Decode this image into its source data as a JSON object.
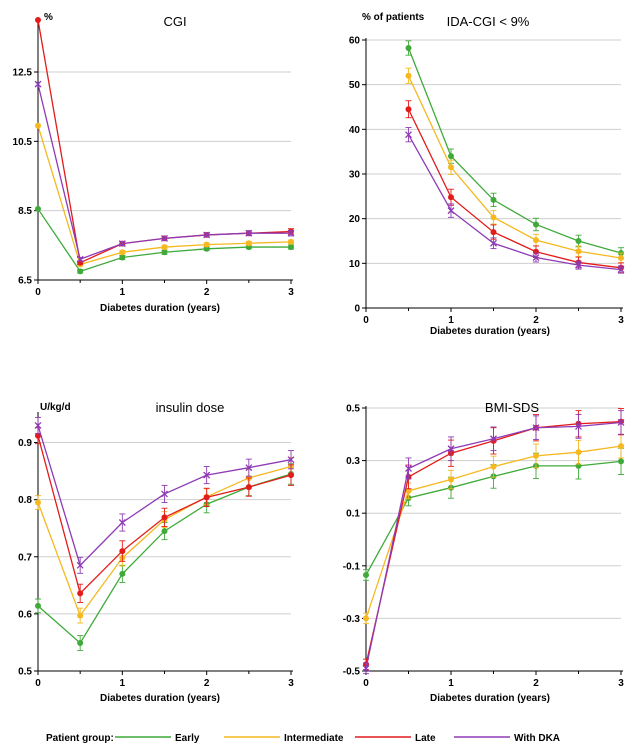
{
  "chart_data": [
    {
      "type": "line",
      "title": "CGI",
      "ylabel": "%",
      "xlabel": "Diabetes duration (years)",
      "xlim": [
        0,
        3
      ],
      "ylim": [
        6.5,
        14
      ],
      "x_ticks": [
        "0",
        "1",
        "2",
        "3"
      ],
      "y_ticks": [
        {
          "value": 6.5,
          "label": "6.5"
        },
        {
          "value": 8.5,
          "label": "8.5"
        },
        {
          "value": 10.5,
          "label": "10.5"
        },
        {
          "value": 12.5,
          "label": "12.5"
        }
      ],
      "x": [
        0,
        0.5,
        1,
        1.5,
        2,
        2.5,
        3
      ],
      "series": [
        {
          "name": "Early",
          "marker": "dot",
          "values": [
            8.55,
            6.75,
            7.15,
            7.3,
            7.4,
            7.45,
            7.45
          ],
          "err": [
            0,
            0.05,
            0.06,
            0.06,
            0.05,
            0.05,
            0.06
          ]
        },
        {
          "name": "Intermediate",
          "marker": "dot",
          "values": [
            10.95,
            6.95,
            7.3,
            7.45,
            7.52,
            7.56,
            7.6
          ],
          "err": [
            0,
            0.05,
            0.05,
            0.05,
            0.05,
            0.05,
            0.05
          ]
        },
        {
          "name": "Late",
          "marker": "dot",
          "values": [
            14.0,
            7.0,
            7.55,
            7.7,
            7.8,
            7.85,
            7.9
          ],
          "err": [
            0,
            0.05,
            0.06,
            0.06,
            0.06,
            0.07,
            0.08
          ]
        },
        {
          "name": "With DKA",
          "marker": "x",
          "values": [
            12.15,
            7.1,
            7.55,
            7.7,
            7.8,
            7.85,
            7.85
          ],
          "err": [
            0,
            0.05,
            0.06,
            0.06,
            0.06,
            0.07,
            0.08
          ]
        }
      ]
    },
    {
      "type": "line",
      "title": "IDA-CGI < 9%",
      "ylabel": "% of patients",
      "xlabel": "Diabetes duration (years)",
      "xlim": [
        0,
        3
      ],
      "ylim": [
        0,
        60
      ],
      "x_ticks": [
        "0",
        "1",
        "2",
        "3"
      ],
      "y_ticks": [
        {
          "value": 0,
          "label": "0"
        },
        {
          "value": 10,
          "label": "10"
        },
        {
          "value": 20,
          "label": "20"
        },
        {
          "value": 30,
          "label": "30"
        },
        {
          "value": 40,
          "label": "40"
        },
        {
          "value": 50,
          "label": "50"
        },
        {
          "value": 60,
          "label": "60"
        }
      ],
      "x": [
        0.5,
        1,
        1.5,
        2,
        2.5,
        3
      ],
      "series": [
        {
          "name": "Early",
          "marker": "dot",
          "values": [
            58.2,
            34.0,
            24.2,
            18.7,
            15.0,
            12.3
          ],
          "err": [
            1.6,
            1.6,
            1.5,
            1.4,
            1.3,
            1.2
          ]
        },
        {
          "name": "Intermediate",
          "marker": "dot",
          "values": [
            52.0,
            31.5,
            20.3,
            15.2,
            12.7,
            11.2
          ],
          "err": [
            1.7,
            1.6,
            1.5,
            1.3,
            1.2,
            1.1
          ]
        },
        {
          "name": "Late",
          "marker": "dot",
          "values": [
            44.5,
            24.8,
            17.0,
            12.6,
            10.2,
            9.0
          ],
          "err": [
            1.9,
            1.8,
            1.6,
            1.3,
            1.2,
            1.1
          ]
        },
        {
          "name": "With DKA",
          "marker": "x",
          "values": [
            38.8,
            21.8,
            14.5,
            11.3,
            9.6,
            8.6
          ],
          "err": [
            1.6,
            1.5,
            1.2,
            1.0,
            0.9,
            0.8
          ]
        }
      ]
    },
    {
      "type": "line",
      "title": "insulin dose",
      "ylabel": "U/kg/d",
      "xlabel": "Diabetes duration (years)",
      "xlim": [
        0,
        3
      ],
      "ylim": [
        0.5,
        0.95
      ],
      "x_ticks": [
        "0",
        "1",
        "2",
        "3"
      ],
      "y_ticks": [
        {
          "value": 0.5,
          "label": "0.5"
        },
        {
          "value": 0.6,
          "label": "0.6"
        },
        {
          "value": 0.7,
          "label": "0.7"
        },
        {
          "value": 0.8,
          "label": "0.8"
        },
        {
          "value": 0.9,
          "label": "0.9"
        }
      ],
      "x": [
        0,
        0.5,
        1,
        1.5,
        2,
        2.5,
        3
      ],
      "series": [
        {
          "name": "Early",
          "marker": "dot",
          "values": [
            0.614,
            0.549,
            0.67,
            0.745,
            0.792,
            0.822,
            0.845
          ],
          "err": [
            0.012,
            0.013,
            0.015,
            0.015,
            0.015,
            0.015,
            0.018
          ]
        },
        {
          "name": "Intermediate",
          "marker": "dot",
          "values": [
            0.795,
            0.597,
            0.698,
            0.765,
            0.805,
            0.838,
            0.858
          ],
          "err": [
            0.012,
            0.013,
            0.014,
            0.014,
            0.014,
            0.015,
            0.016
          ]
        },
        {
          "name": "Late",
          "marker": "dot",
          "values": [
            0.912,
            0.636,
            0.71,
            0.769,
            0.804,
            0.822,
            0.843
          ],
          "err": [
            0.014,
            0.016,
            0.018,
            0.016,
            0.016,
            0.016,
            0.018
          ]
        },
        {
          "name": "With DKA",
          "marker": "x",
          "values": [
            0.93,
            0.685,
            0.76,
            0.81,
            0.843,
            0.856,
            0.87
          ],
          "err": [
            0.014,
            0.014,
            0.015,
            0.015,
            0.015,
            0.015,
            0.016
          ]
        }
      ]
    },
    {
      "type": "line",
      "title": "BMI-SDS",
      "ylabel": "",
      "xlabel": "Diabetes duration (years)",
      "xlim": [
        0,
        3
      ],
      "ylim": [
        -0.5,
        0.5
      ],
      "x_ticks": [
        "0",
        "1",
        "2",
        "3"
      ],
      "y_ticks": [
        {
          "value": -0.5,
          "label": "-0.5"
        },
        {
          "value": -0.3,
          "label": "-0.3"
        },
        {
          "value": -0.1,
          "label": "-0.1"
        },
        {
          "value": 0.1,
          "label": "0.1"
        },
        {
          "value": 0.3,
          "label": "0.3"
        },
        {
          "value": 0.5,
          "label": "0.5"
        }
      ],
      "x": [
        0,
        0.5,
        1,
        1.5,
        2,
        2.5,
        3
      ],
      "series": [
        {
          "name": "Early",
          "marker": "dot",
          "values": [
            -0.135,
            0.158,
            0.197,
            0.24,
            0.28,
            0.28,
            0.297
          ],
          "err": [
            0.02,
            0.03,
            0.04,
            0.045,
            0.048,
            0.05,
            0.05
          ]
        },
        {
          "name": "Intermediate",
          "marker": "dot",
          "values": [
            -0.3,
            0.185,
            0.228,
            0.277,
            0.318,
            0.332,
            0.355
          ],
          "err": [
            0.02,
            0.03,
            0.035,
            0.04,
            0.045,
            0.045,
            0.045
          ]
        },
        {
          "name": "Late",
          "marker": "dot",
          "values": [
            -0.475,
            0.238,
            0.328,
            0.375,
            0.425,
            0.44,
            0.448
          ],
          "err": [
            0.02,
            0.045,
            0.05,
            0.05,
            0.05,
            0.05,
            0.05
          ]
        },
        {
          "name": "With DKA",
          "marker": "x",
          "values": [
            -0.49,
            0.27,
            0.345,
            0.383,
            0.425,
            0.43,
            0.445
          ],
          "err": [
            0.02,
            0.04,
            0.045,
            0.045,
            0.045,
            0.045,
            0.045
          ]
        }
      ]
    }
  ],
  "legend": {
    "title": "Patient group:",
    "placement": "bottom",
    "items": [
      {
        "name": "Early",
        "color": "#3faa3a"
      },
      {
        "name": "Intermediate",
        "color": "#f5b820"
      },
      {
        "name": "Late",
        "color": "#e41b1b"
      },
      {
        "name": "With DKA",
        "color": "#8e3bb5"
      }
    ]
  }
}
